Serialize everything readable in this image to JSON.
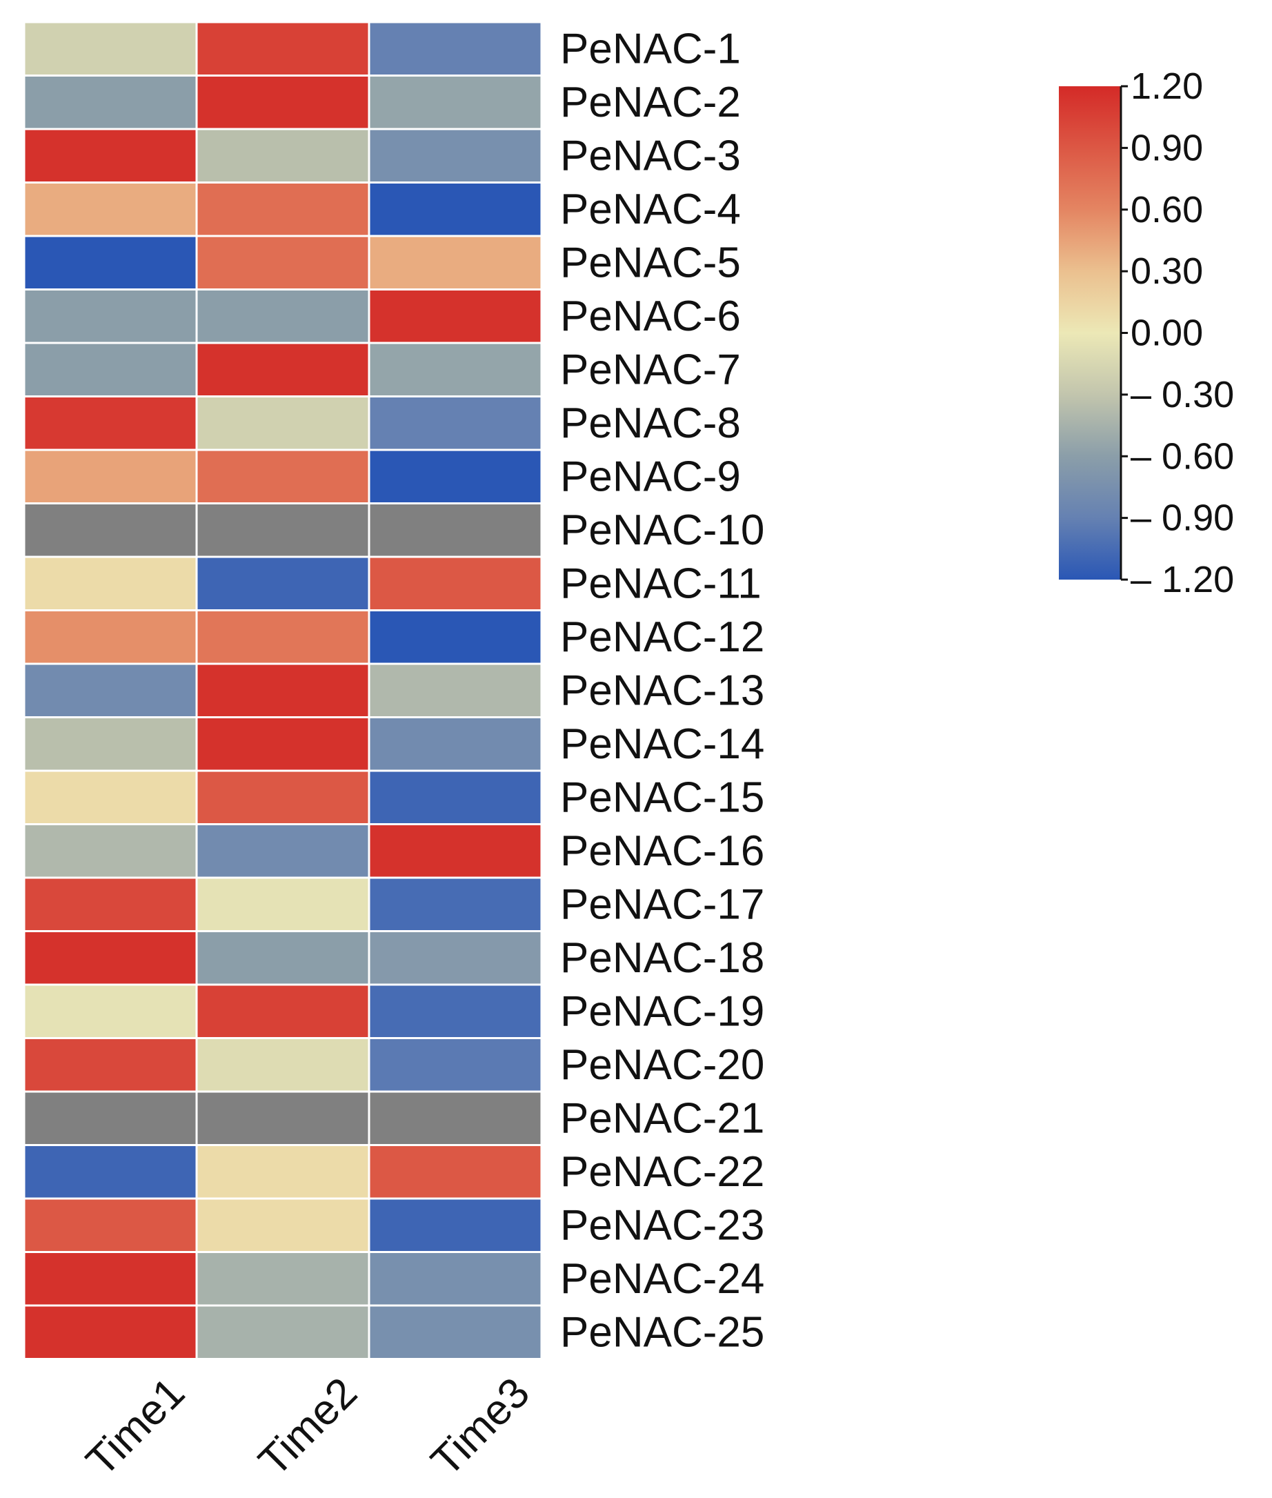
{
  "chart_data": {
    "type": "heatmap",
    "title": "",
    "xlabel": "",
    "ylabel": "",
    "columns": [
      "Time1",
      "Time2",
      "Time3"
    ],
    "rows": [
      "PeNAC-1",
      "PeNAC-2",
      "PeNAC-3",
      "PeNAC-4",
      "PeNAC-5",
      "PeNAC-6",
      "PeNAC-7",
      "PeNAC-8",
      "PeNAC-9",
      "PeNAC-10",
      "PeNAC-11",
      "PeNAC-12",
      "PeNAC-13",
      "PeNAC-14",
      "PeNAC-15",
      "PeNAC-16",
      "PeNAC-17",
      "PeNAC-18",
      "PeNAC-19",
      "PeNAC-20",
      "PeNAC-21",
      "PeNAC-22",
      "PeNAC-23",
      "PeNAC-24",
      "PeNAC-25"
    ],
    "values": [
      [
        -0.2,
        1.05,
        -0.9
      ],
      [
        -0.6,
        1.15,
        -0.55
      ],
      [
        1.15,
        -0.35,
        -0.75
      ],
      [
        0.4,
        0.75,
        -1.2
      ],
      [
        -1.2,
        0.75,
        0.4
      ],
      [
        -0.6,
        -0.6,
        1.15
      ],
      [
        -0.6,
        1.15,
        -0.55
      ],
      [
        1.1,
        -0.2,
        -0.9
      ],
      [
        0.45,
        0.75,
        -1.2
      ],
      [
        null,
        null,
        null
      ],
      [
        0.1,
        -1.1,
        0.9
      ],
      [
        0.55,
        0.7,
        -1.2
      ],
      [
        -0.8,
        1.15,
        -0.4
      ],
      [
        -0.35,
        1.15,
        -0.8
      ],
      [
        0.1,
        0.9,
        -1.1
      ],
      [
        -0.4,
        -0.8,
        1.15
      ],
      [
        1.0,
        -0.05,
        -1.05
      ],
      [
        1.15,
        -0.6,
        -0.65
      ],
      [
        -0.05,
        1.05,
        -1.05
      ],
      [
        1.0,
        -0.1,
        -0.95
      ],
      [
        null,
        null,
        null
      ],
      [
        -1.1,
        0.1,
        0.9
      ],
      [
        0.9,
        0.1,
        -1.1
      ],
      [
        1.15,
        -0.45,
        -0.75
      ],
      [
        1.15,
        -0.45,
        -0.75
      ]
    ],
    "missing_color": "#808080",
    "colorbar": {
      "range": [
        -1.2,
        1.2
      ],
      "tick_values": [
        1.2,
        0.9,
        0.6,
        0.3,
        0.0,
        -0.3,
        -0.6,
        -0.9,
        -1.2
      ],
      "tick_labels": [
        "1.20",
        "0.90",
        "0.60",
        "0.30",
        "0.00",
        "– 0.30",
        "– 0.60",
        "– 0.90",
        "– 1.20"
      ],
      "stops": [
        {
          "value": 1.2,
          "color": "#d42a27"
        },
        {
          "value": 0.6,
          "color": "#e48562"
        },
        {
          "value": 0.3,
          "color": "#ebc08f"
        },
        {
          "value": 0.0,
          "color": "#ece8b6"
        },
        {
          "value": -0.3,
          "color": "#c2c5ad"
        },
        {
          "value": -0.6,
          "color": "#8b9ea9"
        },
        {
          "value": -0.9,
          "color": "#6581b2"
        },
        {
          "value": -1.2,
          "color": "#2a57b5"
        }
      ]
    }
  }
}
